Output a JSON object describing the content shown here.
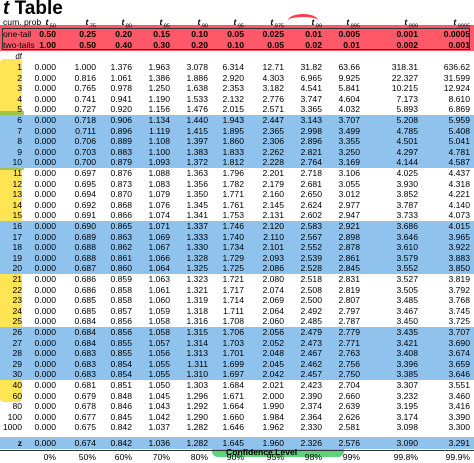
{
  "title": {
    "italic": "t",
    "rest": " Table"
  },
  "labels": {
    "cum_prob": "cum. prob",
    "one_tail": "one-tail",
    "two_tails": "two-tails",
    "df": "df",
    "z": "z",
    "confidence_level": "Confidence Level"
  },
  "columns": [
    {
      "sub": ".50",
      "one": "0.50",
      "two": "1.00",
      "conf": "0%",
      "z": "0.000"
    },
    {
      "sub": ".75",
      "one": "0.25",
      "two": "0.50",
      "conf": "50%",
      "z": "0.674"
    },
    {
      "sub": ".80",
      "one": "0.20",
      "two": "0.40",
      "conf": "60%",
      "z": "0.842"
    },
    {
      "sub": ".85",
      "one": "0.15",
      "two": "0.30",
      "conf": "70%",
      "z": "1.036"
    },
    {
      "sub": ".90",
      "one": "0.10",
      "two": "0.20",
      "conf": "80%",
      "z": "1.282"
    },
    {
      "sub": ".95",
      "one": "0.05",
      "two": "0.10",
      "conf": "90%",
      "z": "1.645"
    },
    {
      "sub": ".975",
      "one": "0.025",
      "two": "0.05",
      "conf": "95%",
      "z": "1.960"
    },
    {
      "sub": ".99",
      "one": "0.01",
      "two": "0.02",
      "conf": "98%",
      "z": "2.326"
    },
    {
      "sub": ".995",
      "one": "0.005",
      "two": "0.01",
      "conf": "99%",
      "z": "2.576"
    },
    {
      "sub": ".999",
      "one": "0.001",
      "two": "0.002",
      "conf": "99.8%",
      "z": "3.090"
    },
    {
      "sub": ".9995",
      "one": "0.0005",
      "two": "0.001",
      "conf": "99.9%",
      "z": "3.291"
    }
  ],
  "rows": [
    [
      "1",
      "0.000",
      "1.000",
      "1.376",
      "1.963",
      "3.078",
      "6.314",
      "12.71",
      "31.82",
      "63.66",
      "318.31",
      "636.62"
    ],
    [
      "2",
      "0.000",
      "0.816",
      "1.061",
      "1.386",
      "1.886",
      "2.920",
      "4.303",
      "6.965",
      "9.925",
      "22.327",
      "31.599"
    ],
    [
      "3",
      "0.000",
      "0.765",
      "0.978",
      "1.250",
      "1.638",
      "2.353",
      "3.182",
      "4.541",
      "5.841",
      "10.215",
      "12.924"
    ],
    [
      "4",
      "0.000",
      "0.741",
      "0.941",
      "1.190",
      "1.533",
      "2.132",
      "2.776",
      "3.747",
      "4.604",
      "7.173",
      "8.610"
    ],
    [
      "5",
      "0.000",
      "0.727",
      "0.920",
      "1.156",
      "1.476",
      "2.015",
      "2.571",
      "3.365",
      "4.032",
      "5.893",
      "6.869"
    ],
    [
      "6",
      "0.000",
      "0.718",
      "0.906",
      "1.134",
      "1.440",
      "1.943",
      "2.447",
      "3.143",
      "3.707",
      "5.208",
      "5.959"
    ],
    [
      "7",
      "0.000",
      "0.711",
      "0.896",
      "1.119",
      "1.415",
      "1.895",
      "2.365",
      "2.998",
      "3.499",
      "4.785",
      "5.408"
    ],
    [
      "8",
      "0.000",
      "0.706",
      "0.889",
      "1.108",
      "1.397",
      "1.860",
      "2.306",
      "2.896",
      "3.355",
      "4.501",
      "5.041"
    ],
    [
      "9",
      "0.000",
      "0.703",
      "0.883",
      "1.100",
      "1.383",
      "1.833",
      "2.262",
      "2.821",
      "3.250",
      "4.297",
      "4.781"
    ],
    [
      "10",
      "0.000",
      "0.700",
      "0.879",
      "1.093",
      "1.372",
      "1.812",
      "2.228",
      "2.764",
      "3.169",
      "4.144",
      "4.587"
    ],
    [
      "11",
      "0.000",
      "0.697",
      "0.876",
      "1.088",
      "1.363",
      "1.796",
      "2.201",
      "2.718",
      "3.106",
      "4.025",
      "4.437"
    ],
    [
      "12",
      "0.000",
      "0.695",
      "0.873",
      "1.083",
      "1.356",
      "1.782",
      "2.179",
      "2.681",
      "3.055",
      "3.930",
      "4.318"
    ],
    [
      "13",
      "0.000",
      "0.694",
      "0.870",
      "1.079",
      "1.350",
      "1.771",
      "2.160",
      "2.650",
      "3.012",
      "3.852",
      "4.221"
    ],
    [
      "14",
      "0.000",
      "0.692",
      "0.868",
      "1.076",
      "1.345",
      "1.761",
      "2.145",
      "2.624",
      "2.977",
      "3.787",
      "4.140"
    ],
    [
      "15",
      "0.000",
      "0.691",
      "0.866",
      "1.074",
      "1.341",
      "1.753",
      "2.131",
      "2.602",
      "2.947",
      "3.733",
      "4.073"
    ],
    [
      "16",
      "0.000",
      "0.690",
      "0.865",
      "1.071",
      "1.337",
      "1.746",
      "2.120",
      "2.583",
      "2.921",
      "3.686",
      "4.015"
    ],
    [
      "17",
      "0.000",
      "0.689",
      "0.863",
      "1.069",
      "1.333",
      "1.740",
      "2.110",
      "2.567",
      "2.898",
      "3.646",
      "3.965"
    ],
    [
      "18",
      "0.000",
      "0.688",
      "0.862",
      "1.067",
      "1.330",
      "1.734",
      "2.101",
      "2.552",
      "2.878",
      "3.610",
      "3.922"
    ],
    [
      "19",
      "0.000",
      "0.688",
      "0.861",
      "1.066",
      "1.328",
      "1.729",
      "2.093",
      "2.539",
      "2.861",
      "3.579",
      "3.883"
    ],
    [
      "20",
      "0.000",
      "0.687",
      "0.860",
      "1.064",
      "1.325",
      "1.725",
      "2.086",
      "2.528",
      "2.845",
      "3.552",
      "3.850"
    ],
    [
      "21",
      "0.000",
      "0.686",
      "0.859",
      "1.063",
      "1.323",
      "1.721",
      "2.080",
      "2.518",
      "2.831",
      "3.527",
      "3.819"
    ],
    [
      "22",
      "0.000",
      "0.686",
      "0.858",
      "1.061",
      "1.321",
      "1.717",
      "2.074",
      "2.508",
      "2.819",
      "3.505",
      "3.792"
    ],
    [
      "23",
      "0.000",
      "0.685",
      "0.858",
      "1.060",
      "1.319",
      "1.714",
      "2.069",
      "2.500",
      "2.807",
      "3.485",
      "3.768"
    ],
    [
      "24",
      "0.000",
      "0.685",
      "0.857",
      "1.059",
      "1.318",
      "1.711",
      "2.064",
      "2.492",
      "2.797",
      "3.467",
      "3.745"
    ],
    [
      "25",
      "0.000",
      "0.684",
      "0.856",
      "1.058",
      "1.316",
      "1.708",
      "2.060",
      "2.485",
      "2.787",
      "3.450",
      "3.725"
    ],
    [
      "26",
      "0.000",
      "0.684",
      "0.856",
      "1.058",
      "1.315",
      "1.706",
      "2.056",
      "2.479",
      "2.779",
      "3.435",
      "3.707"
    ],
    [
      "27",
      "0.000",
      "0.684",
      "0.855",
      "1.057",
      "1.314",
      "1.703",
      "2.052",
      "2.473",
      "2.771",
      "3.421",
      "3.690"
    ],
    [
      "28",
      "0.000",
      "0.683",
      "0.855",
      "1.056",
      "1.313",
      "1.701",
      "2.048",
      "2.467",
      "2.763",
      "3.408",
      "3.674"
    ],
    [
      "29",
      "0.000",
      "0.683",
      "0.854",
      "1.055",
      "1.311",
      "1.699",
      "2.045",
      "2.462",
      "2.756",
      "3.396",
      "3.659"
    ],
    [
      "30",
      "0.000",
      "0.683",
      "0.854",
      "1.055",
      "1.310",
      "1.697",
      "2.042",
      "2.457",
      "2.750",
      "3.385",
      "3.646"
    ],
    [
      "40",
      "0.000",
      "0.681",
      "0.851",
      "1.050",
      "1.303",
      "1.684",
      "2.021",
      "2.423",
      "2.704",
      "3.307",
      "3.551"
    ],
    [
      "60",
      "0.000",
      "0.679",
      "0.848",
      "1.045",
      "1.296",
      "1.671",
      "2.000",
      "2.390",
      "2.660",
      "3.232",
      "3.460"
    ],
    [
      "80",
      "0.000",
      "0.678",
      "0.846",
      "1.043",
      "1.292",
      "1.664",
      "1.990",
      "2.374",
      "2.639",
      "3.195",
      "3.416"
    ],
    [
      "100",
      "0.000",
      "0.677",
      "0.845",
      "1.042",
      "1.290",
      "1.660",
      "1.984",
      "2.364",
      "2.626",
      "3.174",
      "3.390"
    ],
    [
      "1000",
      "0.000",
      "0.675",
      "0.842",
      "1.037",
      "1.282",
      "1.646",
      "1.962",
      "2.330",
      "2.581",
      "3.098",
      "3.300"
    ]
  ]
}
